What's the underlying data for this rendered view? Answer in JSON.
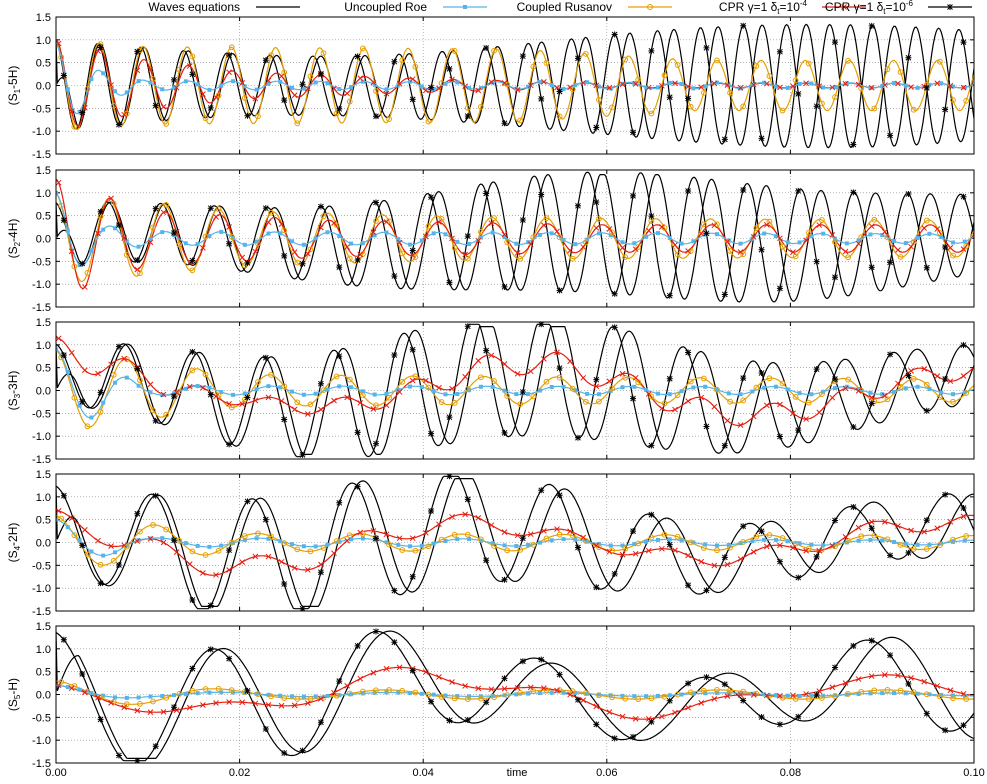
{
  "chart_data": {
    "type": "line",
    "legend_position": "top",
    "grid": true,
    "x": {
      "label": "time",
      "range": [
        0.0,
        0.1
      ],
      "ticks": [
        "0.00",
        "0.02",
        "0.04",
        "0.06",
        "0.08",
        "0.10"
      ],
      "tick_values": [
        0.0,
        0.02,
        0.04,
        0.06,
        0.08,
        0.1
      ]
    },
    "y": {
      "range": [
        -1.5,
        1.5
      ],
      "ticks": [
        "1.5",
        "1.0",
        "0.5",
        "0.0",
        "-0.5",
        "-1.0",
        "-1.5"
      ],
      "tick_values": [
        1.5,
        1.0,
        0.5,
        0.0,
        -0.5,
        -1.0,
        -1.5
      ]
    },
    "legend": [
      {
        "label": "Waves equations",
        "color": "#000000",
        "marker": "none"
      },
      {
        "label": "Uncoupled Roe",
        "color": "#56b4e9",
        "marker": "square"
      },
      {
        "label": "Coupled Rusanov",
        "color": "#e69f00",
        "marker": "circle"
      },
      {
        "label_prefix": "CPR γ=1 δ",
        "label_sub": "t",
        "label_mid": "=10",
        "label_sup": "-4",
        "color": "#e51e10",
        "marker": "cross"
      },
      {
        "label_prefix": "CPR γ=1 δ",
        "label_sub": "t",
        "label_mid": "=10",
        "label_sup": "-6",
        "color": "#000000",
        "marker": "star"
      }
    ],
    "panels": [
      {
        "ylabel_pre": "(S",
        "ylabel_sub": "1",
        "ylabel_post": "-5H)",
        "wave": {
          "freq": 208,
          "decay": 0.9,
          "amp_env": [
            [
              0,
              1.0
            ],
            [
              0.02,
              0.9
            ],
            [
              0.045,
              1.0
            ],
            [
              0.06,
              0.95
            ],
            [
              0.1,
              1.0
            ]
          ]
        },
        "roe_env": [
          [
            0,
            0.9
          ],
          [
            0.005,
            0.3
          ],
          [
            0.01,
            0.1
          ],
          [
            0.1,
            0.05
          ]
        ],
        "rus_env": [
          [
            0,
            1.0
          ],
          [
            0.01,
            0.85
          ],
          [
            0.05,
            0.8
          ],
          [
            0.07,
            0.55
          ],
          [
            0.1,
            0.55
          ]
        ],
        "cpr4_env": [
          [
            0,
            1.0
          ],
          [
            0.01,
            0.55
          ],
          [
            0.02,
            0.3
          ],
          [
            0.04,
            0.15
          ],
          [
            0.06,
            0.05
          ],
          [
            0.1,
            0.05
          ]
        ]
      },
      {
        "ylabel_pre": "(S",
        "ylabel_sub": "2",
        "ylabel_post": "-4H)",
        "wave": {
          "freq": 168
        },
        "roe_env": [
          [
            0,
            1.0
          ],
          [
            0.005,
            0.3
          ],
          [
            0.01,
            0.15
          ],
          [
            0.1,
            0.1
          ]
        ],
        "rus_env": [
          [
            0,
            1.0
          ],
          [
            0.02,
            0.6
          ],
          [
            0.05,
            0.45
          ],
          [
            0.1,
            0.4
          ]
        ],
        "cpr4_env": [
          [
            0,
            1.3
          ],
          [
            0.01,
            0.6
          ],
          [
            0.03,
            0.4
          ],
          [
            0.06,
            0.3
          ],
          [
            0.1,
            0.3
          ]
        ]
      },
      {
        "ylabel_pre": "(S",
        "ylabel_sub": "3",
        "ylabel_post": "-3H)",
        "wave": {
          "freq": 128
        },
        "roe_env": [
          [
            0,
            0.9
          ],
          [
            0.01,
            0.1
          ],
          [
            0.1,
            0.08
          ]
        ],
        "rus_env": [
          [
            0,
            0.9
          ],
          [
            0.02,
            0.35
          ],
          [
            0.05,
            0.3
          ],
          [
            0.1,
            0.25
          ]
        ],
        "cpr4_env": [
          [
            0,
            0.9
          ],
          [
            0.02,
            0.3
          ],
          [
            0.05,
            0.7
          ],
          [
            0.1,
            0.5
          ]
        ]
      },
      {
        "ylabel_pre": "(S",
        "ylabel_sub": "4",
        "ylabel_post": "-2H)",
        "wave": {
          "freq": 90
        },
        "roe_env": [
          [
            0,
            0.5
          ],
          [
            0.01,
            0.1
          ],
          [
            0.1,
            0.05
          ]
        ],
        "rus_env": [
          [
            0,
            0.6
          ],
          [
            0.02,
            0.2
          ],
          [
            0.1,
            0.15
          ]
        ],
        "cpr4_env": [
          [
            0,
            0.6
          ],
          [
            0.03,
            0.6
          ],
          [
            0.06,
            0.35
          ],
          [
            0.1,
            0.5
          ]
        ]
      },
      {
        "ylabel_pre": "(S",
        "ylabel_sub": "5",
        "ylabel_post": "-H)",
        "wave": {
          "freq": 55
        },
        "roe_env": [
          [
            0,
            0.2
          ],
          [
            0.01,
            0.05
          ],
          [
            0.1,
            0.03
          ]
        ],
        "rus_env": [
          [
            0,
            0.3
          ],
          [
            0.02,
            0.1
          ],
          [
            0.1,
            0.1
          ]
        ],
        "cpr4_env": [
          [
            0,
            0.3
          ],
          [
            0.04,
            0.5
          ],
          [
            0.07,
            0.4
          ],
          [
            0.1,
            0.3
          ]
        ]
      }
    ]
  }
}
